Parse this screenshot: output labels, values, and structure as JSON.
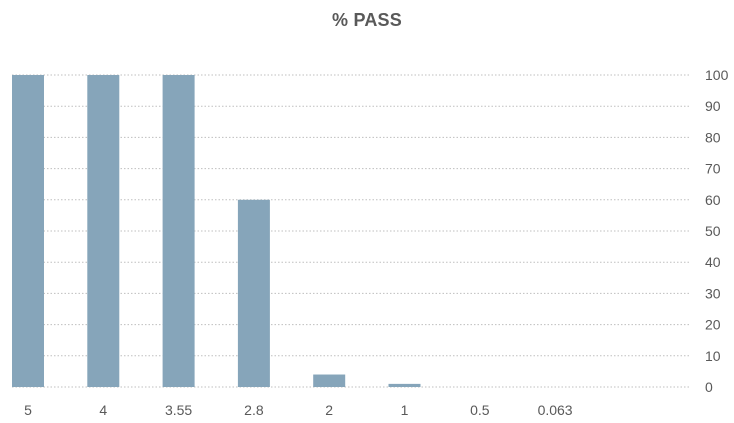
{
  "chart_data": {
    "type": "bar",
    "title": "% PASS",
    "categories": [
      "5",
      "4",
      "3.55",
      "2.8",
      "2",
      "1",
      "0.5",
      "0.063"
    ],
    "series": [
      {
        "values": [
          100,
          100,
          100,
          60,
          4,
          1,
          0,
          0
        ],
        "color": "#86a5ba"
      }
    ],
    "y_axis": {
      "position": "right",
      "ticks": [
        "0",
        "10",
        "20",
        "30",
        "40",
        "50",
        "60",
        "70",
        "80",
        "90",
        "100"
      ]
    },
    "ylim": [
      0,
      100
    ],
    "gridlines": "dotted",
    "grid_color": "#bfbfbf",
    "text_color": "#595959"
  }
}
